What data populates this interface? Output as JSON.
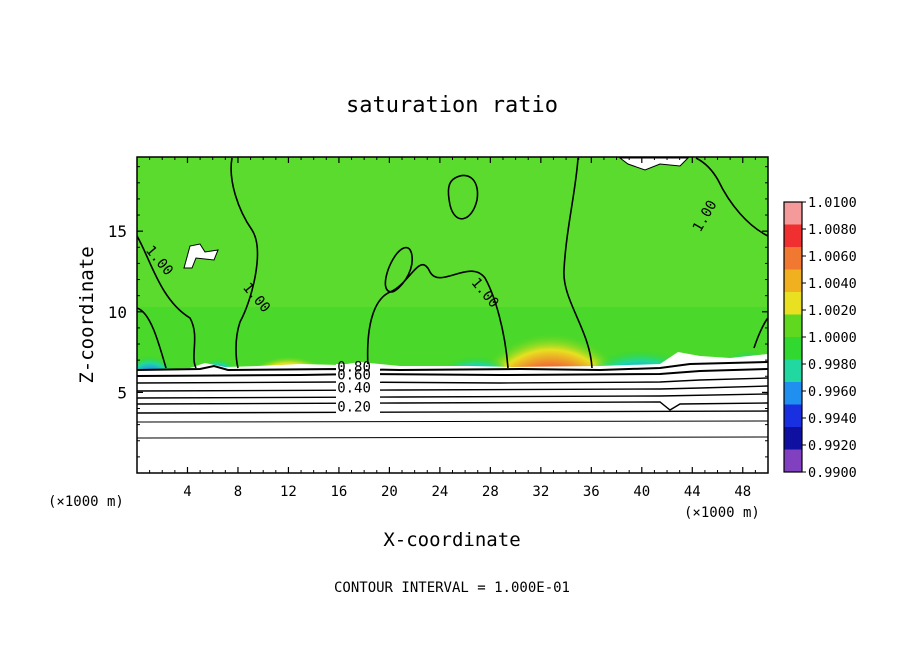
{
  "chart_data": {
    "type": "heatmap",
    "title": "saturation ratio",
    "xlabel": "X-coordinate",
    "ylabel": "Z-coordinate",
    "x_unit_left": "(×1000 m)",
    "x_unit_right": "(×1000 m)",
    "xlim": [
      0,
      50
    ],
    "ylim": [
      0,
      19.6
    ],
    "x_ticks": [
      4,
      8,
      12,
      16,
      20,
      24,
      28,
      32,
      36,
      40,
      44,
      48
    ],
    "y_ticks": [
      5,
      10,
      15
    ],
    "colorbar": {
      "levels": [
        "1.0100",
        "1.0080",
        "1.0060",
        "1.0040",
        "1.0020",
        "1.0000",
        "0.9980",
        "0.9960",
        "0.9940",
        "0.9920",
        "0.9900"
      ],
      "colors": [
        "#f49a9a",
        "#f03030",
        "#f07830",
        "#f0b020",
        "#e8e020",
        "#60d820",
        "#30d830",
        "#20d8a0",
        "#2090f0",
        "#1830e0",
        "#1010a0",
        "#8040c0"
      ]
    },
    "contour_labels": [
      {
        "text": "1.00",
        "x": 1.5,
        "z": 13.0
      },
      {
        "text": "1.00",
        "x": 9.2,
        "z": 10.7
      },
      {
        "text": "1.00",
        "x": 27.3,
        "z": 11.0
      },
      {
        "text": "1.00",
        "x": 45.3,
        "z": 15.8
      },
      {
        "text": "0.80",
        "x": 17.2,
        "z": 6.3
      },
      {
        "text": "0.60",
        "x": 17.2,
        "z": 5.8
      },
      {
        "text": "0.40",
        "x": 17.2,
        "z": 5.0
      },
      {
        "text": "0.20",
        "x": 17.2,
        "z": 3.8
      }
    ],
    "footer": "CONTOUR INTERVAL = 1.000E-01"
  }
}
